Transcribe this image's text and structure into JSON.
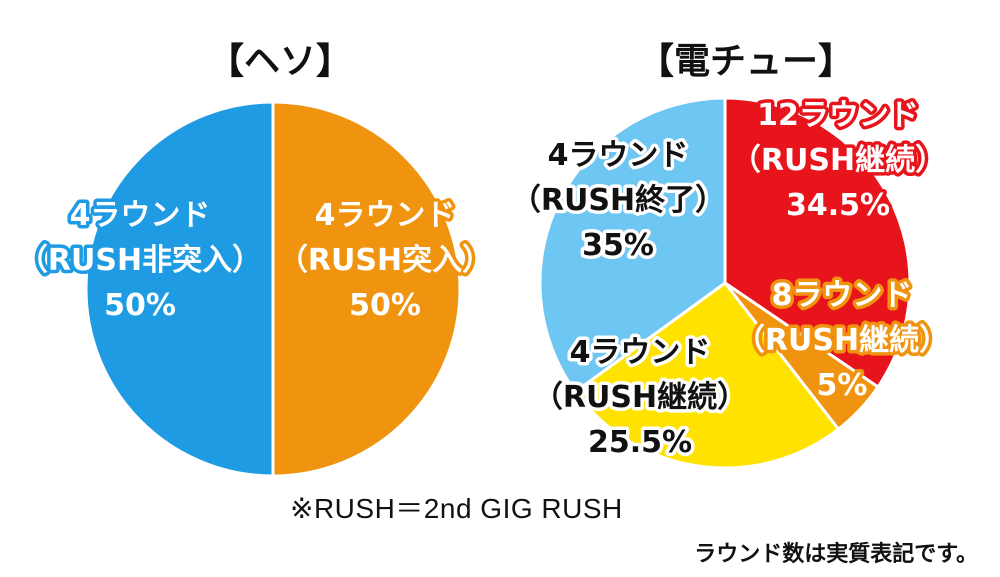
{
  "chart_data": [
    {
      "type": "pie",
      "title": "【ヘソ】",
      "slices": [
        {
          "label_lines": [
            "4ラウンド",
            "（RUSH非突入）",
            "50%"
          ],
          "value": 50,
          "color": "#1e9be2",
          "stroke": "#1e9be2"
        },
        {
          "label_lines": [
            "4ラウンド",
            "（RUSH突入）",
            "50%"
          ],
          "value": 50,
          "color": "#f0930f",
          "stroke": "#f0930f"
        }
      ]
    },
    {
      "type": "pie",
      "title": "【電チュー】",
      "slices": [
        {
          "label_lines": [
            "12ラウンド",
            "（RUSH継続）",
            "34.5%"
          ],
          "value": 34.5,
          "color": "#e8141c",
          "stroke": "#e8141c",
          "text_color": "#ffffff"
        },
        {
          "label_lines": [
            "8ラウンド",
            "（RUSH継続）",
            "5%"
          ],
          "value": 5,
          "color": "#f0930f",
          "stroke": "#f0930f",
          "text_color": "#ffffff"
        },
        {
          "label_lines": [
            "4ラウンド",
            "（RUSH継続）",
            "25.5%"
          ],
          "value": 25.5,
          "color": "#ffe200",
          "stroke": "#ffe200",
          "text_color": "#111111"
        },
        {
          "label_lines": [
            "4ラウンド",
            "（RUSH終了）",
            "35%"
          ],
          "value": 35,
          "color": "#6ec6f2",
          "stroke": "#6ec6f2",
          "text_color": "#111111"
        }
      ]
    }
  ],
  "footnote": "※RUSH＝2nd GIG RUSH",
  "note": "ラウンド数は実質表記です。"
}
